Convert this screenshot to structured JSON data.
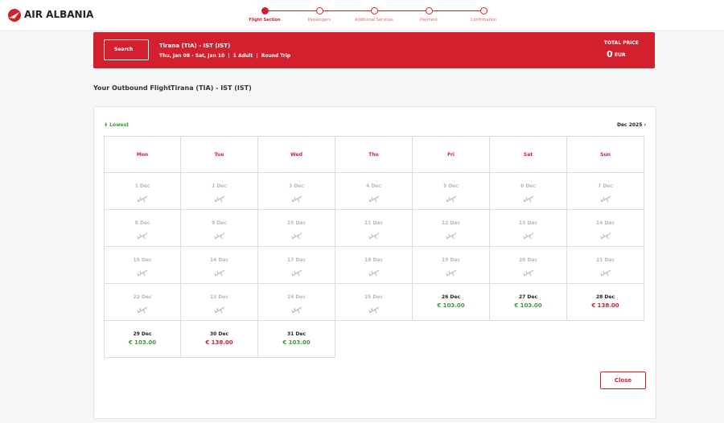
{
  "header": {
    "logo": "AIR ALBANIA",
    "steps": [
      "Flight Section",
      "Passengers",
      "Additional Services",
      "Payment",
      "Confirmation"
    ],
    "active_step": 0
  },
  "search_bar": {
    "button": "Search",
    "route": "Tirana (TIA) - IST (IST)",
    "details": "Thu, Jan 08 - Sat, Jan 10  |  1 Adult  |  Round Trip",
    "total_label": "TOTAL PRICE",
    "total_value": "0",
    "currency": "EUR"
  },
  "outbound": {
    "label": "Your Outbound Flight",
    "route": "Tirana (TIA) - IST (IST)"
  },
  "calendar": {
    "legend": "Lowest",
    "month": "Dec 2025",
    "weekdays": [
      "Mon",
      "Tue",
      "Wed",
      "Thu",
      "Fri",
      "Sat",
      "Sun"
    ],
    "days": [
      {
        "date": "1 Dec"
      },
      {
        "date": "2 Dec"
      },
      {
        "date": "3 Dec"
      },
      {
        "date": "4 Dec"
      },
      {
        "date": "5 Dec"
      },
      {
        "date": "6 Dec"
      },
      {
        "date": "7 Dec"
      },
      {
        "date": "8 Dec"
      },
      {
        "date": "9 Dec"
      },
      {
        "date": "10 Dec"
      },
      {
        "date": "11 Dec"
      },
      {
        "date": "12 Dec"
      },
      {
        "date": "13 Dec"
      },
      {
        "date": "14 Dec"
      },
      {
        "date": "15 Dec"
      },
      {
        "date": "16 Dec"
      },
      {
        "date": "17 Dec"
      },
      {
        "date": "18 Dec"
      },
      {
        "date": "19 Dec"
      },
      {
        "date": "20 Dec"
      },
      {
        "date": "21 Dec"
      },
      {
        "date": "22 Dec"
      },
      {
        "date": "23 Dec"
      },
      {
        "date": "24 Dec"
      },
      {
        "date": "25 Dec"
      },
      {
        "date": "26 Dec",
        "price": "€ 103.00",
        "lowest": true
      },
      {
        "date": "27 Dec",
        "price": "€ 103.00",
        "lowest": true
      },
      {
        "date": "28 Dec",
        "price": "€ 138.00",
        "lowest": false
      },
      {
        "date": "29 Dec",
        "price": "€ 103.00",
        "lowest": true
      },
      {
        "date": "30 Dec",
        "price": "€ 138.00",
        "lowest": false
      },
      {
        "date": "31 Dec",
        "price": "€ 103.00",
        "lowest": true
      }
    ]
  },
  "footer": {
    "close": "Close"
  }
}
